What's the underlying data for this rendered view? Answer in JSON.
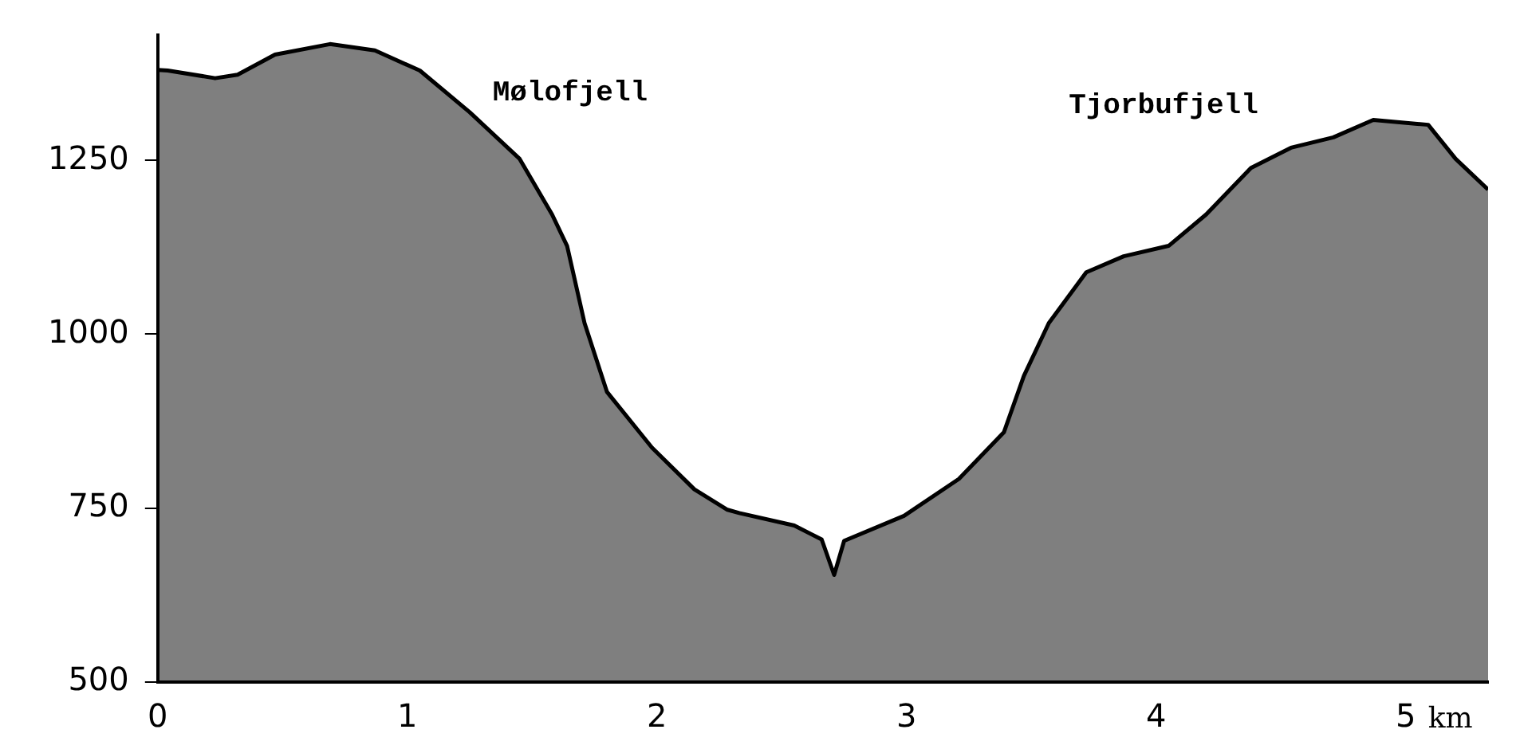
{
  "chart_data": {
    "type": "area",
    "xlabel": "km",
    "marker": "none",
    "annotations": [
      "Mølofjell",
      "Tjorbufjell"
    ],
    "x": [
      0,
      0.04,
      0.23,
      0.32,
      0.47,
      0.69,
      0.87,
      1.05,
      1.25,
      1.45,
      1.58,
      1.64,
      1.71,
      1.8,
      1.98,
      2.15,
      2.28,
      2.33,
      2.55,
      2.66,
      2.71,
      2.75,
      2.99,
      3.21,
      3.39,
      3.47,
      3.57,
      3.72,
      3.87,
      4.05,
      4.2,
      4.38,
      4.54,
      4.71,
      4.87,
      5.09,
      5.2,
      5.33
    ],
    "series": [
      {
        "color": "#000000",
        "values": [
          1380,
          1379,
          1368,
          1373,
          1402,
          1417,
          1408,
          1379,
          1319,
          1252,
          1172,
          1127,
          1016,
          917,
          837,
          777,
          748,
          743,
          725,
          705,
          654,
          703,
          739,
          792,
          859,
          940,
          1016,
          1089,
          1112,
          1127,
          1172,
          1239,
          1268,
          1283,
          1308,
          1301,
          1252,
          1208
        ]
      }
    ],
    "xlim": [
      0,
      5.33
    ],
    "ylim": [
      500,
      1430
    ],
    "xticks": [
      0,
      1,
      2,
      3,
      4,
      5
    ],
    "yticks": [
      500,
      750,
      1000,
      1250
    ]
  }
}
